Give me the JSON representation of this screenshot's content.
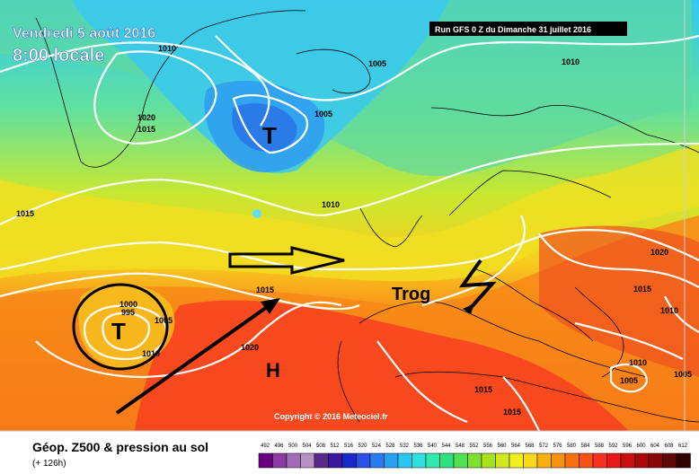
{
  "header": {
    "date": "Vendredi 5 août 2016",
    "time": "8:00 locale",
    "run": "Run GFS 0 Z du Dimanche 31 juillet 2016"
  },
  "footer": {
    "title": "Géop. Z500 & pression au sol",
    "lead": "(+ 126h)",
    "copyright": "Copyright © 2016 Meteociel.fr"
  },
  "annotations": {
    "low_1": "T",
    "low_2": "T",
    "high": "H",
    "trough": "Trog"
  },
  "isobars": {
    "a": "1010",
    "b": "1005",
    "c": "1010",
    "d": "1020",
    "e": "1015",
    "f": "1005",
    "g": "1015",
    "h": "1010",
    "i": "1000",
    "j": "995",
    "k": "1005",
    "l": "1010",
    "m": "1015",
    "n": "1020",
    "o": "1020",
    "p": "1015",
    "q": "1010",
    "r": "1010",
    "s": "1005",
    "t": "1005",
    "u": "1015",
    "v": "1015"
  },
  "legend": {
    "ticks": [
      "492",
      "496",
      "500",
      "504",
      "508",
      "512",
      "516",
      "520",
      "524",
      "528",
      "532",
      "536",
      "540",
      "544",
      "548",
      "552",
      "556",
      "560",
      "564",
      "568",
      "572",
      "576",
      "580",
      "584",
      "588",
      "592",
      "596",
      "600",
      "604",
      "608",
      "612"
    ],
    "colors": [
      "#6a0080",
      "#8a3aa0",
      "#a06ab4",
      "#b890c8",
      "#5a2a8a",
      "#3a1a9a",
      "#1a2ac8",
      "#2a50e8",
      "#2a7af0",
      "#2aa0f0",
      "#2ac8f0",
      "#30e0e0",
      "#30e8b0",
      "#30e080",
      "#50e050",
      "#80e030",
      "#a8e020",
      "#d0e820",
      "#f0f020",
      "#f8d818",
      "#f8b010",
      "#f89010",
      "#f87010",
      "#f85018",
      "#f83020",
      "#e81818",
      "#c81010",
      "#a80808",
      "#880808",
      "#600808",
      "#300000"
    ]
  },
  "colors": {
    "isobar": "#ffffff",
    "annotation_stroke": "#000000"
  }
}
